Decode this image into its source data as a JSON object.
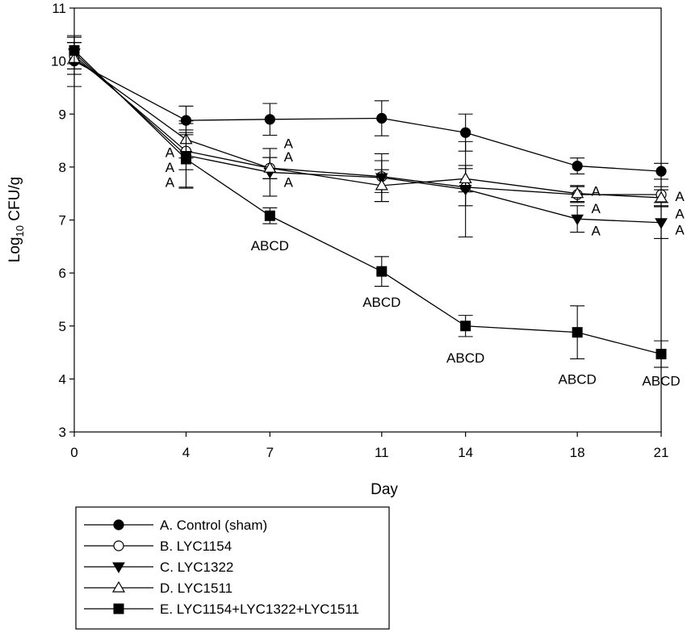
{
  "chart_data": {
    "type": "line",
    "title": "",
    "xlabel": "Day",
    "ylabel": "Log10 CFU/g",
    "ylabel_main": "Log",
    "ylabel_sub": "10",
    "ylabel_unit": " CFU/g",
    "x": [
      0,
      4,
      7,
      11,
      14,
      18,
      21
    ],
    "x_tick_labels": [
      "0",
      "4",
      "7",
      "11",
      "14",
      "18",
      "21"
    ],
    "xlim": [
      0,
      21
    ],
    "ylim": [
      3,
      11
    ],
    "y_ticks": [
      3,
      4,
      5,
      6,
      7,
      8,
      9,
      10,
      11
    ],
    "y_tick_labels": [
      "3",
      "4",
      "5",
      "6",
      "7",
      "8",
      "9",
      "10",
      "11"
    ],
    "grid": false,
    "legend_position": "below",
    "series": [
      {
        "name": "A. Control (sham)",
        "marker": "circle-filled",
        "values": [
          10.0,
          8.88,
          8.9,
          8.92,
          8.65,
          8.02,
          7.92
        ],
        "errors": [
          0.48,
          0.27,
          0.3,
          0.33,
          0.35,
          0.15,
          0.15
        ]
      },
      {
        "name": "B. LYC1154",
        "marker": "circle-open",
        "values": [
          10.1,
          8.3,
          7.98,
          7.82,
          7.62,
          7.48,
          7.48
        ],
        "errors": [
          0.25,
          0.35,
          0.2,
          0.3,
          0.35,
          0.15,
          0.15
        ]
      },
      {
        "name": "C. LYC1322",
        "marker": "triangle-down-filled",
        "values": [
          10.15,
          8.22,
          7.9,
          7.8,
          7.58,
          7.02,
          6.95
        ],
        "errors": [
          0.3,
          0.6,
          0.45,
          0.45,
          0.9,
          0.25,
          0.3
        ]
      },
      {
        "name": "D. LYC1511",
        "marker": "triangle-up-open",
        "values": [
          10.05,
          8.52,
          7.98,
          7.65,
          7.78,
          7.5,
          7.42
        ],
        "errors": [
          0.3,
          0.35,
          0.2,
          0.3,
          0.25,
          0.15,
          0.15
        ]
      },
      {
        "name": "E. LYC1154+LYC1322+LYC1511",
        "marker": "square-filled",
        "values": [
          10.2,
          8.15,
          7.08,
          6.03,
          5.0,
          4.88,
          4.47
        ],
        "errors": [
          0.25,
          0.55,
          0.15,
          0.28,
          0.2,
          0.5,
          0.25
        ]
      }
    ],
    "annotations": [
      {
        "text": "A",
        "x": 4,
        "y": 8.28
      },
      {
        "text": "A",
        "x": 4,
        "y": 8.0
      },
      {
        "text": "A",
        "x": 4,
        "y": 7.72
      },
      {
        "text": "A",
        "x": 7,
        "y": 8.45
      },
      {
        "text": "A",
        "x": 7,
        "y": 8.2
      },
      {
        "text": "A",
        "x": 7,
        "y": 7.72
      },
      {
        "text": "ABCD",
        "x": 7,
        "y": 6.52
      },
      {
        "text": "ABCD",
        "x": 11,
        "y": 5.45
      },
      {
        "text": "ABCD",
        "x": 14,
        "y": 4.4
      },
      {
        "text": "A",
        "x": 18,
        "y": 7.55
      },
      {
        "text": "A",
        "x": 18,
        "y": 7.22
      },
      {
        "text": "A",
        "x": 18,
        "y": 6.8
      },
      {
        "text": "ABCD",
        "x": 18,
        "y": 4.0
      },
      {
        "text": "A",
        "x": 21,
        "y": 7.45
      },
      {
        "text": "A",
        "x": 21,
        "y": 7.12
      },
      {
        "text": "A",
        "x": 21,
        "y": 6.82
      },
      {
        "text": "ABCD",
        "x": 21,
        "y": 3.97
      }
    ]
  }
}
